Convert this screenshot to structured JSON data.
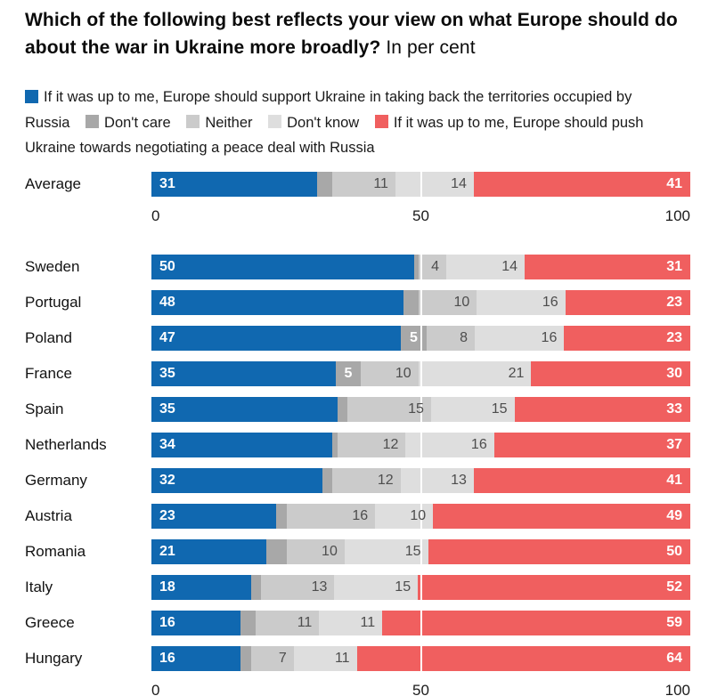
{
  "title": {
    "question": "Which of the following best reflects your view on what Europe should do about the war in Ukraine more broadly?",
    "unit_note": "In per cent"
  },
  "legend": [
    {
      "key": "support_ukraine",
      "label": "If it was up to me, Europe should support Ukraine in taking back the territories occupied by Russia",
      "color": "#1068b0"
    },
    {
      "key": "dont_care",
      "label": "Don't care",
      "color": "#a8a8a8"
    },
    {
      "key": "neither",
      "label": "Neither",
      "color": "#cbcbcb"
    },
    {
      "key": "dont_know",
      "label": "Don't know",
      "color": "#dedede"
    },
    {
      "key": "negotiate_peace",
      "label": "If it was up to me, Europe should push Ukraine towards negotiating a peace deal with Russia",
      "color": "#f05f5f"
    }
  ],
  "chart_data": {
    "type": "bar",
    "variant": "stacked-horizontal",
    "title": "Which of the following best reflects your view on what Europe should do about the war in Ukraine more broadly?",
    "unit": "per cent",
    "xlim": [
      0,
      100
    ],
    "x_ticks": [
      0,
      50,
      100
    ],
    "gridline_at": 50,
    "legend_position": "top",
    "segment_keys": [
      "support_ukraine",
      "dont_care",
      "neither",
      "dont_know",
      "negotiate_peace"
    ],
    "segment_colors": [
      "#1068b0",
      "#a8a8a8",
      "#cbcbcb",
      "#dedede",
      "#f05f5f"
    ],
    "average_row": {
      "label": "Average",
      "values": [
        31,
        3,
        11,
        14,
        41
      ],
      "shown_labels": [
        "31",
        "",
        "11",
        "14",
        "41"
      ]
    },
    "rows": [
      {
        "label": "Sweden",
        "values": [
          50,
          1,
          4,
          14,
          31
        ],
        "shown_labels": [
          "50",
          "",
          "4",
          "14",
          "31"
        ]
      },
      {
        "label": "Portugal",
        "values": [
          48,
          3,
          10,
          16,
          23
        ],
        "shown_labels": [
          "48",
          "",
          "10",
          "16",
          "23"
        ]
      },
      {
        "label": "Poland",
        "values": [
          47,
          5,
          8,
          16,
          23
        ],
        "shown_labels": [
          "47",
          "5",
          "8",
          "16",
          "23"
        ]
      },
      {
        "label": "France",
        "values": [
          35,
          5,
          10,
          21,
          30
        ],
        "shown_labels": [
          "35",
          "5",
          "10",
          "21",
          "30"
        ]
      },
      {
        "label": "Spain",
        "values": [
          35,
          2,
          15,
          15,
          33
        ],
        "shown_labels": [
          "35",
          "",
          "15",
          "15",
          "33"
        ]
      },
      {
        "label": "Netherlands",
        "values": [
          34,
          1,
          12,
          16,
          37
        ],
        "shown_labels": [
          "34",
          "",
          "12",
          "16",
          "37"
        ]
      },
      {
        "label": "Germany",
        "values": [
          32,
          2,
          12,
          13,
          41
        ],
        "shown_labels": [
          "32",
          "",
          "12",
          "13",
          "41"
        ]
      },
      {
        "label": "Austria",
        "values": [
          23,
          2,
          16,
          10,
          49
        ],
        "shown_labels": [
          "23",
          "",
          "16",
          "10",
          "49"
        ]
      },
      {
        "label": "Romania",
        "values": [
          21,
          4,
          10,
          15,
          50
        ],
        "shown_labels": [
          "21",
          "",
          "10",
          "15",
          "50"
        ]
      },
      {
        "label": "Italy",
        "values": [
          18,
          2,
          13,
          15,
          52
        ],
        "shown_labels": [
          "18",
          "",
          "13",
          "15",
          "52"
        ]
      },
      {
        "label": "Greece",
        "values": [
          16,
          3,
          11,
          11,
          59
        ],
        "shown_labels": [
          "16",
          "",
          "11",
          "11",
          "59"
        ]
      },
      {
        "label": "Hungary",
        "values": [
          16,
          2,
          7,
          11,
          64
        ],
        "shown_labels": [
          "16",
          "",
          "7",
          "11",
          "64"
        ]
      }
    ]
  }
}
